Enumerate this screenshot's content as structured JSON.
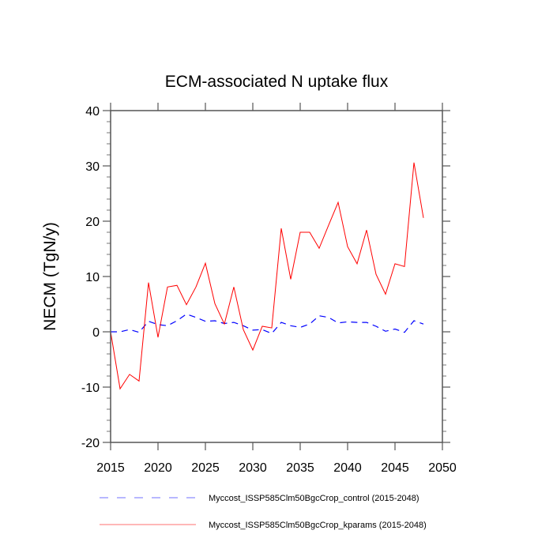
{
  "chart_data": {
    "type": "line",
    "title": "ECM-associated N uptake flux",
    "xlabel": "",
    "ylabel": "NECM  (TgN/y)",
    "xlim": [
      2015,
      2050
    ],
    "ylim": [
      -20,
      40
    ],
    "x_ticks": [
      2015,
      2020,
      2025,
      2030,
      2035,
      2040,
      2045,
      2050
    ],
    "x_tick_labels": [
      "2015",
      "2020",
      "2025",
      "2030",
      "2035",
      "2040",
      "2045",
      "2050"
    ],
    "y_ticks": [
      -20,
      -10,
      0,
      10,
      20,
      30,
      40
    ],
    "y_tick_labels": [
      "-20",
      "-10",
      "0",
      "10",
      "20",
      "30",
      "40"
    ],
    "y_minor_step": 2,
    "grid": false,
    "legend_position": "bottom",
    "x": [
      2015,
      2016,
      2017,
      2018,
      2019,
      2020,
      2021,
      2022,
      2023,
      2024,
      2025,
      2026,
      2027,
      2028,
      2029,
      2030,
      2031,
      2032,
      2033,
      2034,
      2035,
      2036,
      2037,
      2038,
      2039,
      2040,
      2041,
      2042,
      2043,
      2044,
      2045,
      2046,
      2047,
      2048
    ],
    "series": [
      {
        "name": "Myccost_ISSP585Clm50BgcCrop_control (2015-2048)",
        "color": "#0000ff",
        "style": "dashed",
        "values": [
          0.0,
          0.0,
          0.4,
          -0.1,
          1.9,
          1.3,
          1.1,
          2.0,
          3.2,
          2.6,
          1.9,
          2.0,
          1.5,
          1.7,
          1.1,
          0.3,
          0.4,
          -0.3,
          1.7,
          1.1,
          0.8,
          1.4,
          2.9,
          2.6,
          1.6,
          1.8,
          1.7,
          1.7,
          1.0,
          0.1,
          0.5,
          -0.1,
          2.0,
          1.4
        ]
      },
      {
        "name": "Myccost_ISSP585Clm50BgcCrop_kparams (2015-2048)",
        "color": "#ff0000",
        "style": "solid",
        "values": [
          0.0,
          -10.3,
          -7.7,
          -8.9,
          8.9,
          -1.0,
          8.1,
          8.4,
          4.9,
          8.1,
          12.4,
          5.1,
          1.4,
          8.1,
          0.4,
          -3.3,
          1.0,
          0.7,
          18.7,
          9.5,
          18.0,
          18.0,
          15.1,
          19.3,
          23.4,
          15.4,
          12.3,
          18.4,
          10.4,
          6.8,
          12.3,
          11.8,
          30.6,
          20.6
        ]
      }
    ]
  }
}
